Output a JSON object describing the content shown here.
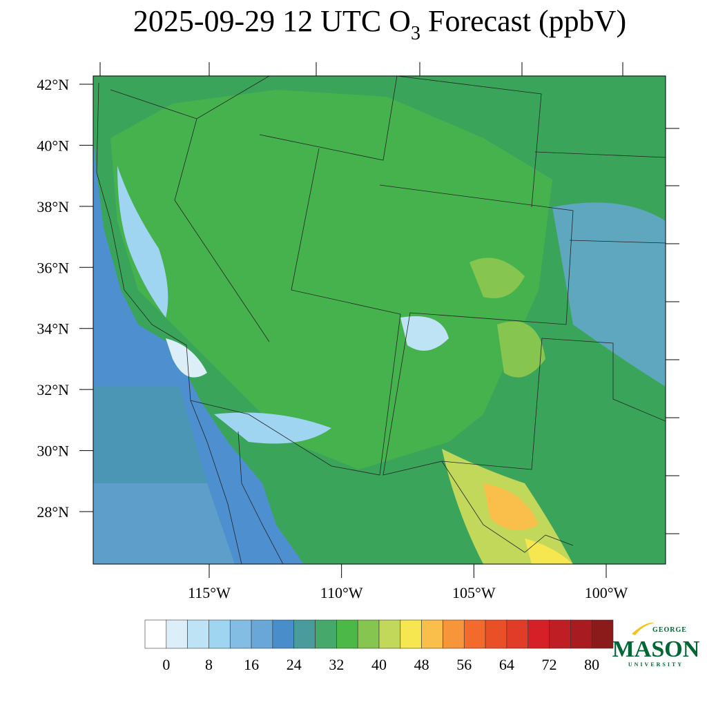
{
  "title": {
    "main": "2025-09-29 12 UTC O",
    "subscript": "3",
    "rest": " Forecast (ppbV)"
  },
  "map": {
    "lat_labels": [
      {
        "value": 42,
        "label": "42°N"
      },
      {
        "value": 40,
        "label": "40°N"
      },
      {
        "value": 38,
        "label": "38°N"
      },
      {
        "value": 36,
        "label": "36°N"
      },
      {
        "value": 34,
        "label": "34°N"
      },
      {
        "value": 32,
        "label": "32°N"
      },
      {
        "value": 30,
        "label": "30°N"
      },
      {
        "value": 28,
        "label": "28°N"
      }
    ],
    "lon_labels": [
      {
        "value": -115,
        "label": "115°W"
      },
      {
        "value": -110,
        "label": "110°W"
      },
      {
        "value": -105,
        "label": "105°W"
      },
      {
        "value": -100,
        "label": "100°W"
      }
    ]
  },
  "colorbar": {
    "colors": [
      "#ffffff",
      "#dceff9",
      "#bde3f5",
      "#9fd5f1",
      "#84bde3",
      "#69a7d8",
      "#4a8dcb",
      "#4a9c9c",
      "#46a86a",
      "#4cb848",
      "#86c54f",
      "#c2d85a",
      "#f6e64f",
      "#f9bf4a",
      "#f7953a",
      "#f26a2c",
      "#ea5028",
      "#e13c27",
      "#d42026",
      "#bf1e25",
      "#a81b21",
      "#8b1a1a"
    ],
    "ticks": [
      0,
      8,
      16,
      24,
      32,
      40,
      48,
      56,
      64,
      72,
      80
    ]
  },
  "logo": {
    "top": "GEORGE",
    "main": "MASON",
    "bottom": "UNIVERSITY"
  }
}
